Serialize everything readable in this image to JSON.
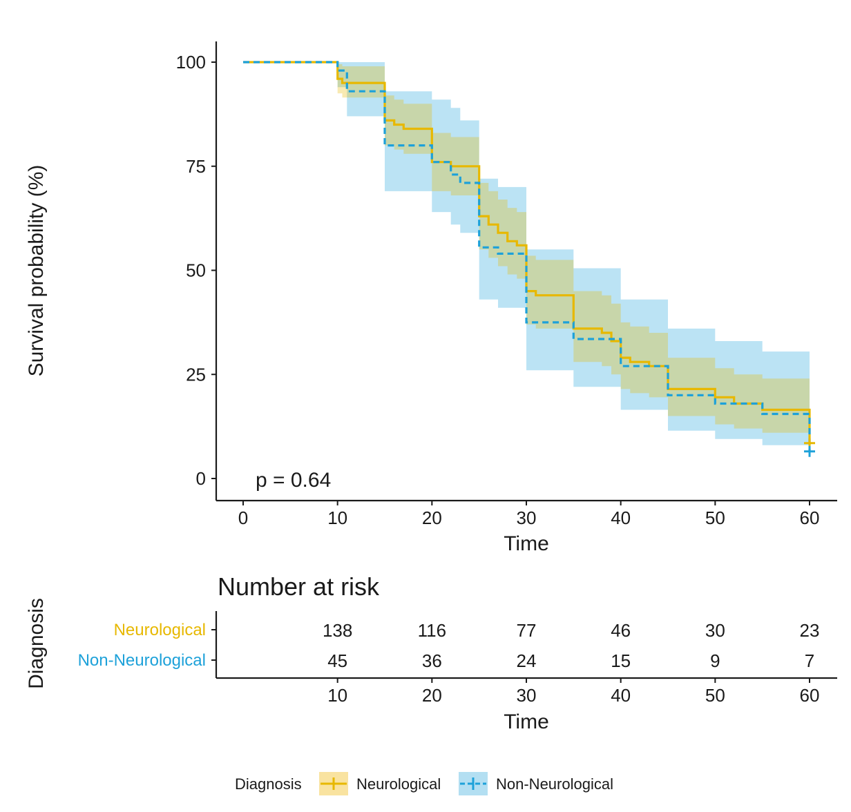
{
  "chart_data": {
    "type": "kaplan-meier",
    "ylabel": "Survival probability (%)",
    "xlabel": "Time",
    "xlim": [
      0,
      60
    ],
    "ylim": [
      0,
      100
    ],
    "xticks": [
      0,
      10,
      20,
      30,
      40,
      50,
      60
    ],
    "yticks": [
      0,
      25,
      50,
      75,
      100
    ],
    "p_value_label": "p = 0.64",
    "series": [
      {
        "name": "Neurological",
        "color": "#E7B800",
        "line_style": "solid",
        "steps": [
          [
            0,
            100
          ],
          [
            10,
            96
          ],
          [
            10.5,
            95
          ],
          [
            15,
            86
          ],
          [
            16,
            85
          ],
          [
            17,
            84
          ],
          [
            20,
            76
          ],
          [
            22,
            75
          ],
          [
            25,
            63
          ],
          [
            26,
            61
          ],
          [
            27,
            59
          ],
          [
            28,
            57
          ],
          [
            29,
            56
          ],
          [
            30,
            45
          ],
          [
            31,
            44
          ],
          [
            35,
            36
          ],
          [
            38,
            35
          ],
          [
            39,
            33
          ],
          [
            40,
            29
          ],
          [
            41,
            28
          ],
          [
            43,
            27
          ],
          [
            45,
            21.5
          ],
          [
            50,
            19.5
          ],
          [
            52,
            18
          ],
          [
            55,
            16.5
          ],
          [
            60,
            16.5
          ]
        ],
        "ci_lower": [
          [
            0,
            100
          ],
          [
            10,
            92.5
          ],
          [
            10.5,
            91.5
          ],
          [
            15,
            80
          ],
          [
            16,
            79
          ],
          [
            17,
            78
          ],
          [
            20,
            69
          ],
          [
            22,
            68
          ],
          [
            25,
            55
          ],
          [
            26,
            53
          ],
          [
            27,
            51
          ],
          [
            28,
            49
          ],
          [
            29,
            48
          ],
          [
            30,
            37
          ],
          [
            31,
            36
          ],
          [
            35,
            28
          ],
          [
            38,
            27
          ],
          [
            39,
            25
          ],
          [
            40,
            21.5
          ],
          [
            41,
            20.5
          ],
          [
            43,
            19.5
          ],
          [
            45,
            15
          ],
          [
            50,
            13
          ],
          [
            52,
            12
          ],
          [
            55,
            11
          ],
          [
            60,
            11
          ]
        ],
        "ci_upper": [
          [
            0,
            100
          ],
          [
            10,
            99.5
          ],
          [
            10.5,
            99
          ],
          [
            15,
            92
          ],
          [
            16,
            91
          ],
          [
            17,
            90
          ],
          [
            20,
            83
          ],
          [
            22,
            82
          ],
          [
            25,
            71
          ],
          [
            26,
            69
          ],
          [
            27,
            67
          ],
          [
            28,
            65
          ],
          [
            29,
            64
          ],
          [
            30,
            53.5
          ],
          [
            31,
            52.5
          ],
          [
            35,
            45
          ],
          [
            38,
            44
          ],
          [
            39,
            42
          ],
          [
            40,
            37.5
          ],
          [
            41,
            36.5
          ],
          [
            43,
            35
          ],
          [
            45,
            29
          ],
          [
            50,
            26.5
          ],
          [
            52,
            25
          ],
          [
            55,
            24
          ],
          [
            60,
            24
          ]
        ],
        "end_marker": {
          "time": 60,
          "value": 8.5
        }
      },
      {
        "name": "Non-Neurological",
        "color": "#1DA1D9",
        "line_style": "dashed",
        "steps": [
          [
            0,
            100
          ],
          [
            10,
            98
          ],
          [
            11,
            93
          ],
          [
            15,
            80
          ],
          [
            20,
            76
          ],
          [
            22,
            73
          ],
          [
            23,
            71
          ],
          [
            25,
            55.5
          ],
          [
            27,
            54
          ],
          [
            30,
            37.5
          ],
          [
            35,
            33.5
          ],
          [
            40,
            27
          ],
          [
            45,
            20
          ],
          [
            50,
            18
          ],
          [
            55,
            15.5
          ],
          [
            60,
            15.5
          ]
        ],
        "ci_lower": [
          [
            0,
            100
          ],
          [
            10,
            94
          ],
          [
            11,
            87
          ],
          [
            15,
            69
          ],
          [
            20,
            64
          ],
          [
            22,
            61
          ],
          [
            23,
            59
          ],
          [
            25,
            43
          ],
          [
            27,
            41
          ],
          [
            30,
            26
          ],
          [
            35,
            22
          ],
          [
            40,
            16.5
          ],
          [
            45,
            11.5
          ],
          [
            50,
            9.5
          ],
          [
            55,
            8
          ],
          [
            60,
            8
          ]
        ],
        "ci_upper": [
          [
            0,
            100
          ],
          [
            10,
            100
          ],
          [
            11,
            100
          ],
          [
            15,
            93
          ],
          [
            20,
            91
          ],
          [
            22,
            89
          ],
          [
            23,
            86
          ],
          [
            25,
            72
          ],
          [
            27,
            70
          ],
          [
            30,
            55
          ],
          [
            35,
            50.5
          ],
          [
            40,
            43
          ],
          [
            45,
            36
          ],
          [
            50,
            33
          ],
          [
            55,
            30.5
          ],
          [
            60,
            30.5
          ]
        ],
        "end_marker": {
          "time": 60,
          "value": 6.5
        }
      }
    ],
    "risk_table": {
      "title": "Number at risk",
      "strata_label": "Diagnosis",
      "xlabel": "Time",
      "times": [
        10,
        20,
        30,
        40,
        50,
        60
      ],
      "rows": [
        {
          "name": "Neurological",
          "color": "#E7B800",
          "values": [
            138,
            116,
            77,
            46,
            30,
            23
          ]
        },
        {
          "name": "Non-Neurological",
          "color": "#1DA1D9",
          "values": [
            45,
            36,
            24,
            15,
            9,
            7
          ]
        }
      ]
    },
    "legend": {
      "title": "Diagnosis",
      "position": "bottom",
      "entries": [
        {
          "name": "Neurological",
          "color": "#E7B800",
          "fill": "#F9E3A0"
        },
        {
          "name": "Non-Neurological",
          "color": "#1DA1D9",
          "fill": "#B3DFF2"
        }
      ]
    }
  }
}
